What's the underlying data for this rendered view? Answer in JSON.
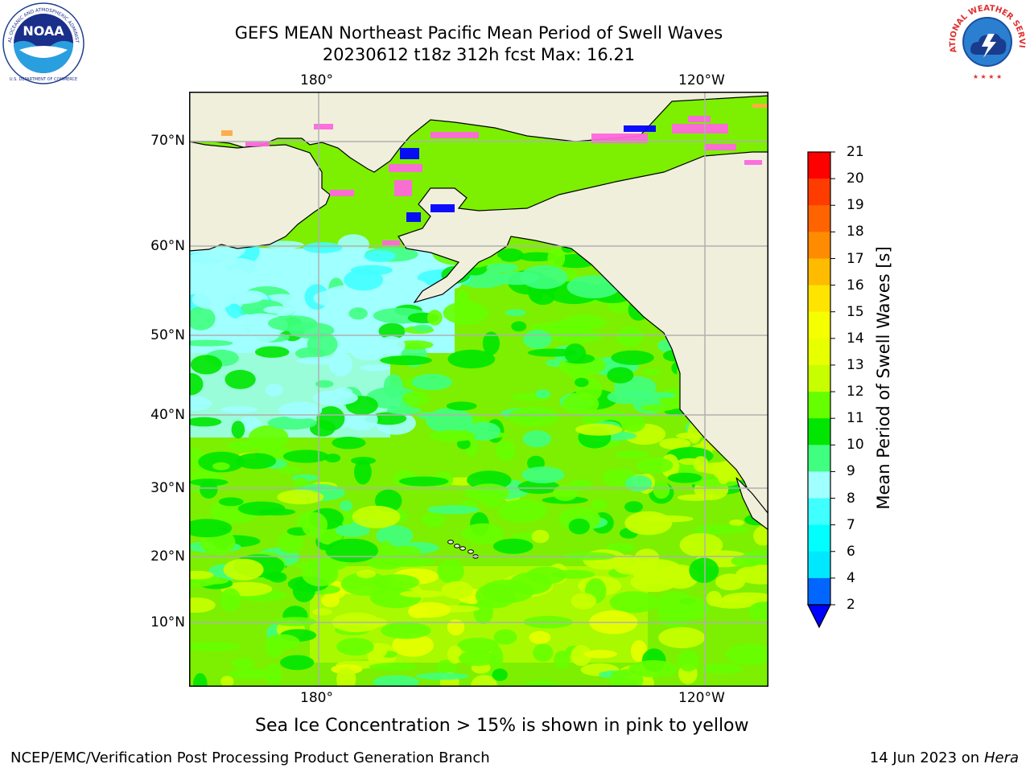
{
  "title": {
    "line1": "GEFS MEAN Northeast Pacific Mean Period of Swell Waves",
    "line2": "20230612 t18z 312h fcst   Max: 16.21"
  },
  "map": {
    "lon_labels": [
      "180°",
      "120°W"
    ],
    "lat_labels": [
      "70°N",
      "60°N",
      "50°N",
      "40°N",
      "30°N",
      "20°N",
      "10°N"
    ],
    "colors": {
      "land": "#efefdc",
      "grid": "#b0b0b0",
      "coast": "#000000",
      "ice_pink": "#ff66dd",
      "ice_blue": "#0000ff",
      "ice_orange": "#ffaa44"
    }
  },
  "colorbar": {
    "label": "Mean Period of Swell Waves [s]",
    "ticks": [
      "2",
      "4",
      "6",
      "7",
      "8",
      "9",
      "10",
      "11",
      "12",
      "13",
      "14",
      "15",
      "16",
      "17",
      "18",
      "19",
      "20",
      "21"
    ],
    "bins": [
      {
        "from": 2,
        "to": 4,
        "color": "#0066ff"
      },
      {
        "from": 4,
        "to": 6,
        "color": "#00e8ff"
      },
      {
        "from": 6,
        "to": 7,
        "color": "#00ffff"
      },
      {
        "from": 7,
        "to": 8,
        "color": "#40ffff"
      },
      {
        "from": 8,
        "to": 9,
        "color": "#a0ffff"
      },
      {
        "from": 9,
        "to": 10,
        "color": "#40ff80"
      },
      {
        "from": 10,
        "to": 11,
        "color": "#00e600"
      },
      {
        "from": 11,
        "to": 12,
        "color": "#66ff00"
      },
      {
        "from": 12,
        "to": 13,
        "color": "#c8ff00"
      },
      {
        "from": 13,
        "to": 14,
        "color": "#e8ff00"
      },
      {
        "from": 14,
        "to": 15,
        "color": "#f6ff00"
      },
      {
        "from": 15,
        "to": 16,
        "color": "#ffe400"
      },
      {
        "from": 16,
        "to": 17,
        "color": "#ffbb00"
      },
      {
        "from": 17,
        "to": 18,
        "color": "#ff8c00"
      },
      {
        "from": 18,
        "to": 19,
        "color": "#ff6400"
      },
      {
        "from": 19,
        "to": 20,
        "color": "#ff3c00"
      },
      {
        "from": 20,
        "to": 21,
        "color": "#ff0000"
      }
    ],
    "extend_min_color": "#0000ff"
  },
  "note": "Sea Ice Concentration > 15% is shown in pink to yellow",
  "footer": {
    "left": "NCEP/EMC/Verification Post Processing Product Generation Branch",
    "right_date": "14 Jun 2023 on",
    "right_host": "Hera"
  },
  "logos": {
    "noaa_text": "NOAA",
    "noaa_ring": "NATIONAL OCEANIC AND ATMOSPHERIC ADMINISTRATION",
    "noaa_bottom": "U.S. DEPARTMENT OF COMMERCE",
    "nws_ring": "NATIONAL WEATHER SERVICE"
  }
}
